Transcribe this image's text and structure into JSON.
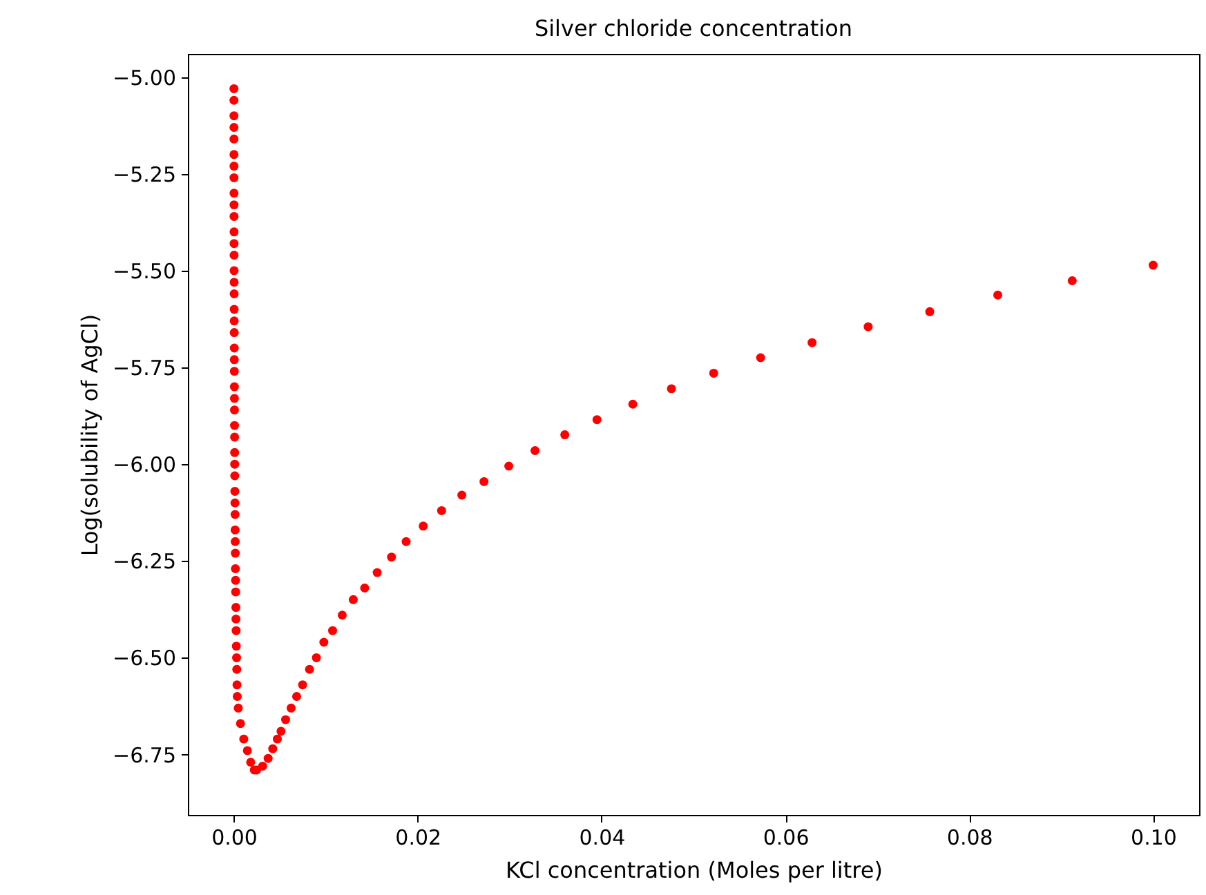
{
  "chart_data": {
    "type": "scatter",
    "title": "Silver chloride concentration",
    "xlabel": "KCl concentration (Moles per litre)",
    "ylabel": "Log(solubility of AgCl)",
    "xlim": [
      -0.005,
      0.105
    ],
    "ylim": [
      -6.906,
      -4.94
    ],
    "xticks": [
      {
        "value": 0,
        "label": "0.00"
      },
      {
        "value": 0.02,
        "label": "0.02"
      },
      {
        "value": 0.04,
        "label": "0.04"
      },
      {
        "value": 0.06,
        "label": "0.06"
      },
      {
        "value": 0.08,
        "label": "0.08"
      },
      {
        "value": 0.1,
        "label": "0.10"
      }
    ],
    "yticks": [
      {
        "value": -6.75,
        "label": "−6.75"
      },
      {
        "value": -6.5,
        "label": "−6.50"
      },
      {
        "value": -6.25,
        "label": "−6.25"
      },
      {
        "value": -6,
        "label": "−6.00"
      },
      {
        "value": -5.75,
        "label": "−5.75"
      },
      {
        "value": -5.5,
        "label": "−5.50"
      },
      {
        "value": -5.25,
        "label": "−5.25"
      },
      {
        "value": -5,
        "label": "−5.00"
      }
    ],
    "marker": "circle",
    "series": [
      {
        "color": "#ff0000",
        "x": [
          1e-05,
          1.1e-05,
          1.2e-05,
          1.3e-05,
          1.4e-05,
          1.5e-05,
          1.6e-05,
          1.7e-05,
          1.9e-05,
          2e-05,
          2.2e-05,
          2.3e-05,
          2.5e-05,
          2.7e-05,
          2.9e-05,
          3.2e-05,
          3.4e-05,
          3.7e-05,
          4e-05,
          4.3e-05,
          4.7e-05,
          5e-05,
          5.4e-05,
          5.9e-05,
          6.3e-05,
          6.8e-05,
          7.4e-05,
          8e-05,
          8.6e-05,
          9.3e-05,
          0.0001,
          0.00011,
          0.00012,
          0.00013,
          0.00014,
          0.00015,
          0.00016,
          0.00017,
          0.00019,
          0.0002,
          0.00022,
          0.00023,
          0.00025,
          0.00027,
          0.0003,
          0.00032,
          0.00034,
          0.00037,
          0.00048,
          0.00072,
          0.00108,
          0.00147,
          0.00183,
          0.00222,
          0.00248,
          0.00313,
          0.00373,
          0.00423,
          0.00473,
          0.00513,
          0.00563,
          0.00623,
          0.00683,
          0.00748,
          0.00823,
          0.00898,
          0.00979,
          0.01074,
          0.01179,
          0.01299,
          0.01423,
          0.01559,
          0.01715,
          0.01874,
          0.0206,
          0.0226,
          0.0248,
          0.02721,
          0.02991,
          0.03276,
          0.036,
          0.0395,
          0.0434,
          0.0476,
          0.0522,
          0.0573,
          0.0629,
          0.069,
          0.0757,
          0.0831,
          0.0912,
          0.1
        ],
        "values": [
          -5.03,
          -5.06,
          -5.1,
          -5.13,
          -5.16,
          -5.2,
          -5.23,
          -5.26,
          -5.3,
          -5.33,
          -5.36,
          -5.4,
          -5.43,
          -5.46,
          -5.5,
          -5.53,
          -5.56,
          -5.6,
          -5.63,
          -5.66,
          -5.7,
          -5.73,
          -5.76,
          -5.8,
          -5.83,
          -5.86,
          -5.9,
          -5.93,
          -5.97,
          -6,
          -6.03,
          -6.07,
          -6.1,
          -6.13,
          -6.17,
          -6.2,
          -6.23,
          -6.27,
          -6.3,
          -6.33,
          -6.37,
          -6.4,
          -6.43,
          -6.47,
          -6.5,
          -6.53,
          -6.57,
          -6.6,
          -6.63,
          -6.67,
          -6.71,
          -6.74,
          -6.77,
          -6.79,
          -6.79,
          -6.78,
          -6.76,
          -6.735,
          -6.71,
          -6.69,
          -6.66,
          -6.63,
          -6.6,
          -6.57,
          -6.53,
          -6.5,
          -6.46,
          -6.43,
          -6.39,
          -6.35,
          -6.32,
          -6.28,
          -6.24,
          -6.2,
          -6.16,
          -6.12,
          -6.08,
          -6.045,
          -6.005,
          -5.965,
          -5.924,
          -5.885,
          -5.845,
          -5.805,
          -5.765,
          -5.725,
          -5.686,
          -5.645,
          -5.606,
          -5.563,
          -5.526,
          -5.486
        ]
      }
    ]
  }
}
